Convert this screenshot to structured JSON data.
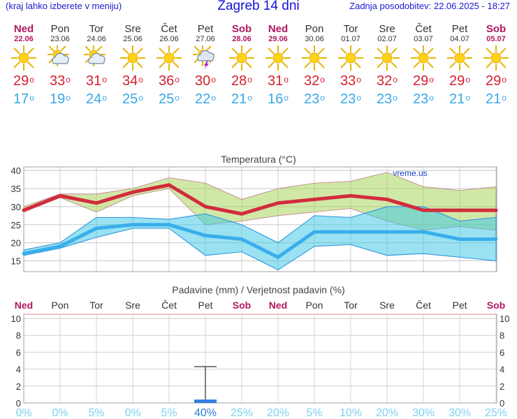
{
  "header": {
    "menu_hint": "(kraj lahko izberete v meniju)",
    "title": "Zagreb 14 dni",
    "updated": "Zadnja posodobitev: 22.06.2025 - 18:27"
  },
  "colors": {
    "max": "#d22b3c",
    "min": "#3aaeea",
    "weekend": "#b0175f",
    "precip_prob": "#7fd0f0"
  },
  "days": [
    {
      "name": "Ned",
      "date": "22.06",
      "weekend": true,
      "icon": "sun-icon",
      "max": "29",
      "min": "17"
    },
    {
      "name": "Pon",
      "date": "23.06",
      "weekend": false,
      "icon": "sun-cloud-icon",
      "max": "33",
      "min": "19"
    },
    {
      "name": "Tor",
      "date": "24.06",
      "weekend": false,
      "icon": "sun-cloud-icon",
      "max": "31",
      "min": "24"
    },
    {
      "name": "Sre",
      "date": "25.06",
      "weekend": false,
      "icon": "sun-icon",
      "max": "34",
      "min": "25"
    },
    {
      "name": "Čet",
      "date": "26.06",
      "weekend": false,
      "icon": "sun-icon",
      "max": "36",
      "min": "25"
    },
    {
      "name": "Pet",
      "date": "27.06",
      "weekend": false,
      "icon": "thunderstorm-sun-icon",
      "max": "30",
      "min": "22"
    },
    {
      "name": "Sob",
      "date": "28.06",
      "weekend": true,
      "icon": "sun-icon",
      "max": "28",
      "min": "21"
    },
    {
      "name": "Ned",
      "date": "29.06",
      "weekend": true,
      "icon": "sun-icon",
      "max": "31",
      "min": "16"
    },
    {
      "name": "Pon",
      "date": "30.06",
      "weekend": false,
      "icon": "sun-icon",
      "max": "32",
      "min": "23"
    },
    {
      "name": "Tor",
      "date": "01.07",
      "weekend": false,
      "icon": "sun-icon",
      "max": "33",
      "min": "23"
    },
    {
      "name": "Sre",
      "date": "02.07",
      "weekend": false,
      "icon": "sun-icon",
      "max": "32",
      "min": "23"
    },
    {
      "name": "Čet",
      "date": "03.07",
      "weekend": false,
      "icon": "sun-icon",
      "max": "29",
      "min": "23"
    },
    {
      "name": "Pet",
      "date": "04.07",
      "weekend": false,
      "icon": "sun-icon",
      "max": "29",
      "min": "21"
    },
    {
      "name": "Sob",
      "date": "05.07",
      "weekend": true,
      "icon": "sun-icon",
      "max": "29",
      "min": "21"
    }
  ],
  "chart_data": [
    {
      "type": "line",
      "title": "Temperatura (°C)",
      "watermark": "vreme.us",
      "ylim": [
        12,
        41
      ],
      "yticks": [
        15,
        20,
        25,
        30,
        35,
        40
      ],
      "grid": true,
      "series": [
        {
          "values": [
            29,
            33,
            31,
            34,
            36,
            30,
            28,
            31,
            32,
            33,
            32,
            29,
            29,
            29
          ]
        },
        {
          "values": [
            17,
            19,
            24,
            25,
            25,
            22,
            21,
            16,
            23,
            23,
            23,
            23,
            21,
            21
          ]
        }
      ],
      "bands": [
        {
          "upper": [
            30,
            33.5,
            33.5,
            35,
            38,
            36.5,
            32,
            35,
            36.5,
            37,
            39.5,
            35.5,
            34.5,
            35.5
          ],
          "lower": [
            28.5,
            32.5,
            28.5,
            33,
            35,
            25,
            26,
            27.5,
            28.5,
            29.5,
            26,
            23.5,
            24.5,
            23.5
          ]
        },
        {
          "upper": [
            18,
            20,
            27,
            27,
            26.5,
            28,
            25,
            20,
            27.5,
            27,
            30,
            30,
            26,
            27
          ],
          "lower": [
            16.5,
            18.5,
            21.5,
            24,
            24,
            16.5,
            17.5,
            12.5,
            19,
            19.5,
            16.5,
            17,
            16,
            15
          ]
        }
      ]
    },
    {
      "type": "bar",
      "title": "Padavine (mm) / Verjetnost padavin (%)",
      "ylim": [
        0,
        10.5
      ],
      "yticks": [
        0,
        2,
        4,
        6,
        8,
        10
      ],
      "days": [
        "Ned",
        "Pon",
        "Tor",
        "Sre",
        "Čet",
        "Pet",
        "Sob",
        "Ned",
        "Pon",
        "Tor",
        "Sre",
        "Čet",
        "Pet",
        "Sob"
      ],
      "weekend": [
        true,
        false,
        false,
        false,
        false,
        false,
        true,
        true,
        false,
        false,
        false,
        false,
        false,
        true
      ],
      "values": [
        0,
        0,
        0,
        0,
        0,
        0.4,
        0,
        0,
        0,
        0,
        0,
        0,
        0,
        0
      ],
      "error_high": [
        null,
        null,
        null,
        null,
        null,
        4.3,
        null,
        null,
        null,
        null,
        null,
        null,
        null,
        null
      ],
      "probability": [
        "0%",
        "0%",
        "5%",
        "0%",
        "5%",
        "40%",
        "25%",
        "20%",
        "5%",
        "10%",
        "20%",
        "30%",
        "30%",
        "25%"
      ]
    }
  ]
}
